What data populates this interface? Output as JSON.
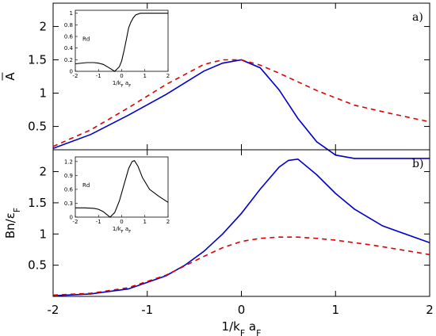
{
  "chart_data": [
    {
      "type": "line",
      "panel_tag": "a)",
      "ylabel": "A",
      "ylabel_overbar": true,
      "xlim": [
        -2,
        2
      ],
      "ylim": [
        0.15,
        2.35
      ],
      "x_ticks": [
        "-2",
        "-1",
        "0",
        "1",
        "2"
      ],
      "y_ticks": [
        "0.5",
        "1",
        "1.5",
        "2"
      ],
      "series": [
        {
          "color": "#0000cc",
          "dash": "solid",
          "x": [
            -2,
            -1.6,
            -1.2,
            -0.8,
            -0.4,
            -0.2,
            0,
            0.2,
            0.4,
            0.6,
            0.8,
            1.0,
            1.2,
            1.6,
            2.0
          ],
          "y": [
            0.17,
            0.38,
            0.67,
            0.98,
            1.33,
            1.45,
            1.5,
            1.38,
            1.05,
            0.62,
            0.27,
            0.07,
            0.02,
            0.02,
            0.02
          ]
        },
        {
          "color": "#dd0000",
          "dash": "dashed",
          "x": [
            -2,
            -1.6,
            -1.2,
            -0.8,
            -0.4,
            -0.2,
            0,
            0.2,
            0.4,
            0.8,
            1.2,
            1.6,
            2.0
          ],
          "y": [
            0.2,
            0.45,
            0.78,
            1.13,
            1.43,
            1.5,
            1.5,
            1.42,
            1.3,
            1.04,
            0.82,
            0.69,
            0.57
          ]
        }
      ],
      "inset": {
        "ylabel": "Rd",
        "xlabel": "1/k_F a_F",
        "xlim": [
          -2,
          2
        ],
        "ylim": [
          0,
          1.05
        ],
        "x_ticks": [
          "-2",
          "-1",
          "0",
          "1",
          "2"
        ],
        "y_ticks": [
          "0",
          "0.2",
          "0.4",
          "0.6",
          "0.8",
          "1"
        ],
        "series": [
          {
            "color": "#000000",
            "x": [
              -2,
              -1.5,
              -1.2,
              -1,
              -0.8,
              -0.5,
              -0.3,
              -0.1,
              0,
              0.1,
              0.2,
              0.3,
              0.4,
              0.5,
              0.6,
              0.8,
              1,
              1.5,
              2
            ],
            "y": [
              0.13,
              0.15,
              0.15,
              0.14,
              0.12,
              0.05,
              0.0,
              0.08,
              0.18,
              0.35,
              0.55,
              0.75,
              0.85,
              0.92,
              0.97,
              1.0,
              1.0,
              1.0,
              1.0
            ]
          }
        ]
      }
    },
    {
      "type": "line",
      "panel_tag": "b)",
      "ylabel": "Bn/ε_F",
      "xlabel": "1/k_F a_F",
      "xlim": [
        -2,
        2
      ],
      "ylim": [
        0,
        2.35
      ],
      "x_ticks": [
        "-2",
        "-1",
        "0",
        "1",
        "2"
      ],
      "y_ticks": [
        "0.5",
        "1",
        "1.5",
        "2"
      ],
      "series": [
        {
          "color": "#0000cc",
          "dash": "solid",
          "x": [
            -2,
            -1.6,
            -1.2,
            -0.8,
            -0.6,
            -0.4,
            -0.2,
            0,
            0.2,
            0.4,
            0.5,
            0.6,
            0.8,
            1.0,
            1.2,
            1.5,
            2.0
          ],
          "y": [
            0.01,
            0.04,
            0.12,
            0.33,
            0.5,
            0.72,
            1.0,
            1.33,
            1.72,
            2.07,
            2.18,
            2.2,
            1.95,
            1.65,
            1.4,
            1.13,
            0.86
          ]
        },
        {
          "color": "#dd0000",
          "dash": "dashed",
          "x": [
            -2,
            -1.6,
            -1.2,
            -0.8,
            -0.6,
            -0.4,
            -0.2,
            0,
            0.2,
            0.4,
            0.6,
            0.8,
            1.0,
            1.4,
            1.8,
            2.0
          ],
          "y": [
            0.02,
            0.05,
            0.14,
            0.34,
            0.49,
            0.64,
            0.78,
            0.88,
            0.93,
            0.95,
            0.95,
            0.93,
            0.9,
            0.82,
            0.72,
            0.67
          ]
        }
      ],
      "inset": {
        "ylabel": "Rd",
        "xlabel": "1/k_F a_F",
        "xlim": [
          -2,
          2
        ],
        "ylim": [
          0,
          1.3
        ],
        "x_ticks": [
          "-2",
          "-1",
          "0",
          "1",
          "2"
        ],
        "y_ticks": [
          "0",
          "0.3",
          "0.6",
          "0.9",
          "1.2"
        ],
        "series": [
          {
            "color": "#000000",
            "x": [
              -2,
              -1.6,
              -1.2,
              -1,
              -0.8,
              -0.6,
              -0.5,
              -0.3,
              -0.1,
              0.1,
              0.3,
              0.45,
              0.55,
              0.7,
              0.9,
              1.2,
              1.6,
              2
            ],
            "y": [
              0.2,
              0.2,
              0.19,
              0.17,
              0.12,
              0.04,
              0.0,
              0.1,
              0.35,
              0.7,
              1.05,
              1.2,
              1.22,
              1.1,
              0.85,
              0.6,
              0.45,
              0.32
            ]
          }
        ]
      }
    }
  ]
}
